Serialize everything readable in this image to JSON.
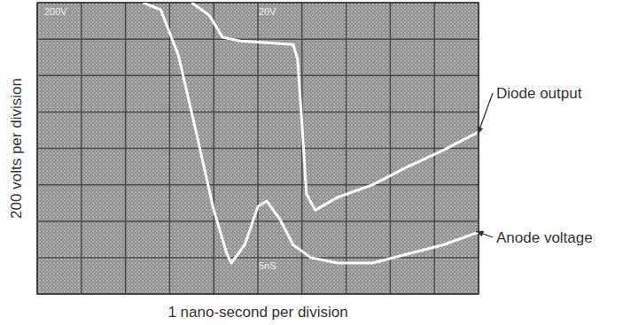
{
  "chart_data": {
    "type": "line",
    "x_label": "1 nano-second per division",
    "y_label": "200 volts per division",
    "xlim": [
      0,
      10
    ],
    "xticks": [
      0,
      1,
      2,
      3,
      4,
      5,
      6,
      7,
      8,
      9,
      10
    ],
    "ylim": [
      0,
      1600
    ],
    "yticks": [
      0,
      200,
      400,
      600,
      800,
      1000,
      1200,
      1400,
      1600
    ],
    "grid": true,
    "tick_labels": false,
    "annotations": [
      "200V",
      "20V",
      "5nS"
    ],
    "series": [
      {
        "name": "Diode output",
        "color": "#ffffff",
        "line_style": "solid",
        "x": [
          3.5,
          3.9,
          4.2,
          4.6,
          5.8,
          5.9,
          6.0,
          6.1,
          6.3,
          6.8,
          7.6,
          8.4,
          9.2,
          10.0
        ],
        "values": [
          1600,
          1530,
          1410,
          1390,
          1370,
          1290,
          930,
          550,
          460,
          530,
          600,
          700,
          790,
          890
        ]
      },
      {
        "name": "Anode voltage",
        "color": "#ffffff",
        "line_style": "solid",
        "x": [
          2.4,
          2.8,
          3.2,
          3.6,
          4.0,
          4.3,
          4.4,
          4.7,
          5.0,
          5.2,
          5.5,
          5.8,
          6.2,
          6.8,
          7.6,
          8.4,
          9.2,
          10.0
        ],
        "values": [
          1600,
          1560,
          1310,
          890,
          460,
          220,
          170,
          270,
          480,
          510,
          410,
          270,
          200,
          170,
          170,
          220,
          270,
          340
        ]
      }
    ]
  }
}
